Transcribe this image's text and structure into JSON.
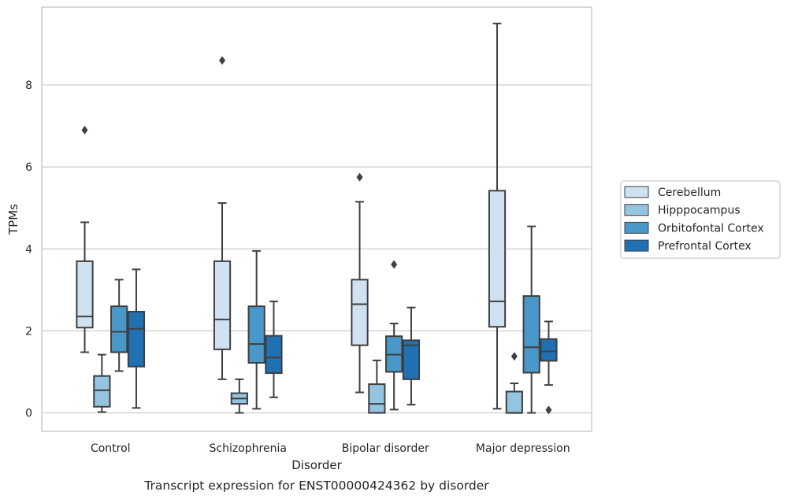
{
  "chart_data": {
    "type": "box",
    "title": "",
    "caption": "Transcript expression for ENST00000424362 by disorder",
    "xlabel": "Disorder",
    "ylabel": "TPMs",
    "ylim": [
      -0.45,
      9.9
    ],
    "yticks": [
      0,
      2,
      4,
      6,
      8
    ],
    "grid": "horizontal",
    "legend_position": "right",
    "categories": [
      "Control",
      "Schizophrenia",
      "Bipolar disorder",
      "Major depression"
    ],
    "series": [
      {
        "name": "Cerebellum",
        "color": "#d0e1f2",
        "boxes": [
          {
            "min": 1.48,
            "q1": 2.08,
            "median": 2.35,
            "q3": 3.7,
            "max": 4.65,
            "outliers": [
              6.9
            ]
          },
          {
            "min": 0.82,
            "q1": 1.55,
            "median": 2.28,
            "q3": 3.7,
            "max": 5.12,
            "outliers": [
              8.6
            ]
          },
          {
            "min": 0.5,
            "q1": 1.65,
            "median": 2.65,
            "q3": 3.25,
            "max": 5.15,
            "outliers": [
              5.75
            ]
          },
          {
            "min": 0.1,
            "q1": 2.1,
            "median": 2.72,
            "q3": 5.42,
            "max": 9.5,
            "outliers": []
          }
        ]
      },
      {
        "name": "Hipppocampus",
        "color": "#94c4df",
        "boxes": [
          {
            "min": 0.02,
            "q1": 0.15,
            "median": 0.55,
            "q3": 0.9,
            "max": 1.42,
            "outliers": []
          },
          {
            "min": 0.0,
            "q1": 0.22,
            "median": 0.35,
            "q3": 0.48,
            "max": 0.82,
            "outliers": []
          },
          {
            "min": 0.0,
            "q1": 0.0,
            "median": 0.22,
            "q3": 0.7,
            "max": 1.28,
            "outliers": []
          },
          {
            "min": 0.0,
            "q1": 0.0,
            "median": 0.0,
            "q3": 0.52,
            "max": 0.72,
            "outliers": [
              1.38
            ]
          }
        ]
      },
      {
        "name": "Orbitofontal Cortex",
        "color": "#4a98c9",
        "boxes": [
          {
            "min": 1.02,
            "q1": 1.48,
            "median": 1.98,
            "q3": 2.6,
            "max": 3.25,
            "outliers": []
          },
          {
            "min": 0.1,
            "q1": 1.22,
            "median": 1.68,
            "q3": 2.6,
            "max": 3.95,
            "outliers": []
          },
          {
            "min": 0.08,
            "q1": 1.0,
            "median": 1.42,
            "q3": 1.87,
            "max": 2.18,
            "outliers": [
              3.62
            ]
          },
          {
            "min": 0.0,
            "q1": 0.98,
            "median": 1.6,
            "q3": 2.85,
            "max": 4.55,
            "outliers": []
          }
        ]
      },
      {
        "name": "Prefrontal Cortex",
        "color": "#2070b4",
        "boxes": [
          {
            "min": 0.12,
            "q1": 1.13,
            "median": 2.05,
            "q3": 2.47,
            "max": 3.5,
            "outliers": []
          },
          {
            "min": 0.38,
            "q1": 0.97,
            "median": 1.35,
            "q3": 1.88,
            "max": 2.72,
            "outliers": []
          },
          {
            "min": 0.2,
            "q1": 0.82,
            "median": 1.65,
            "q3": 1.77,
            "max": 2.57,
            "outliers": []
          },
          {
            "min": 0.68,
            "q1": 1.27,
            "median": 1.5,
            "q3": 1.8,
            "max": 2.23,
            "outliers": [
              0.07
            ]
          }
        ]
      }
    ]
  }
}
